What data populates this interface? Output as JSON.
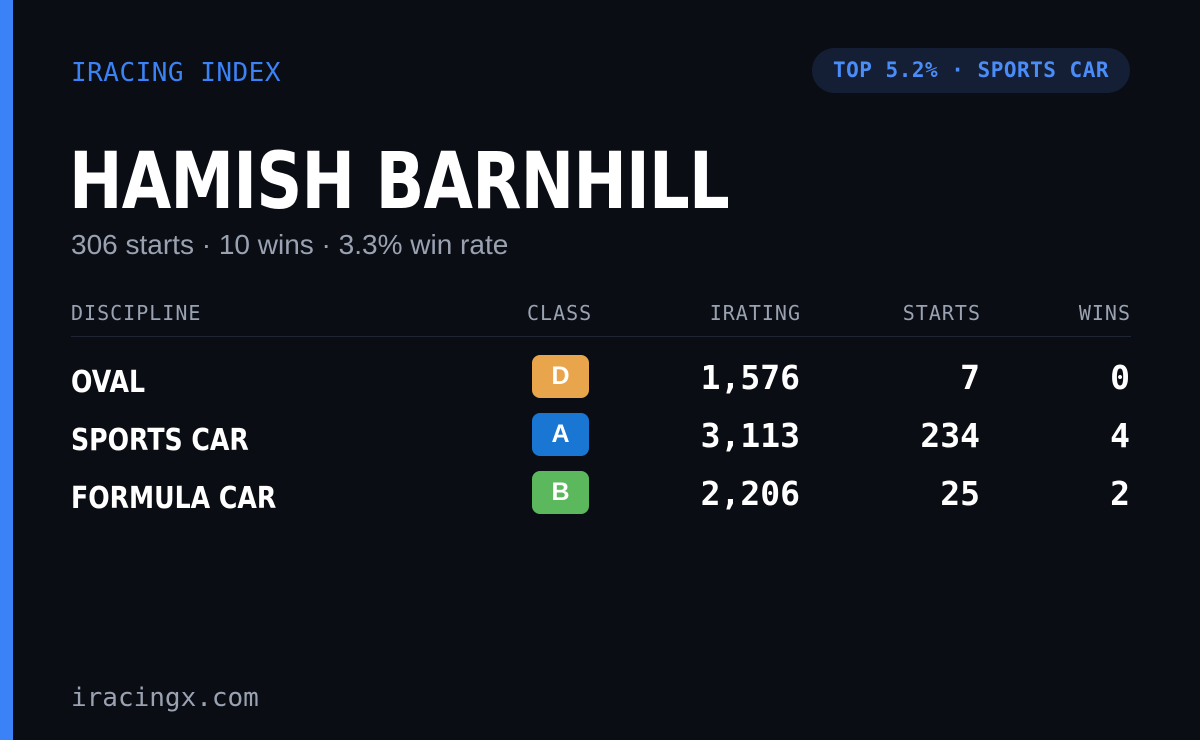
{
  "brand": "IRACING INDEX",
  "rank_badge": "TOP 5.2% · SPORTS CAR",
  "driver": {
    "name": "HAMISH BARNHILL",
    "summary": "306 starts · 10 wins · 3.3% win rate"
  },
  "table": {
    "headers": {
      "discipline": "DISCIPLINE",
      "class": "CLASS",
      "irating": "IRATING",
      "starts": "STARTS",
      "wins": "WINS"
    },
    "rows": [
      {
        "discipline": "OVAL",
        "class": "D",
        "class_color": "#e8a54b",
        "irating": "1,576",
        "starts": "7",
        "wins": "0"
      },
      {
        "discipline": "SPORTS CAR",
        "class": "A",
        "class_color": "#1976d2",
        "irating": "3,113",
        "starts": "234",
        "wins": "4"
      },
      {
        "discipline": "FORMULA CAR",
        "class": "B",
        "class_color": "#5cb85c",
        "irating": "2,206",
        "starts": "25",
        "wins": "2"
      }
    ]
  },
  "footer": "iracingx.com",
  "colors": {
    "background": "#0a0d14",
    "accent": "#3b82f6",
    "muted_text": "#9aa2b1",
    "badge_background": "#141f36"
  }
}
